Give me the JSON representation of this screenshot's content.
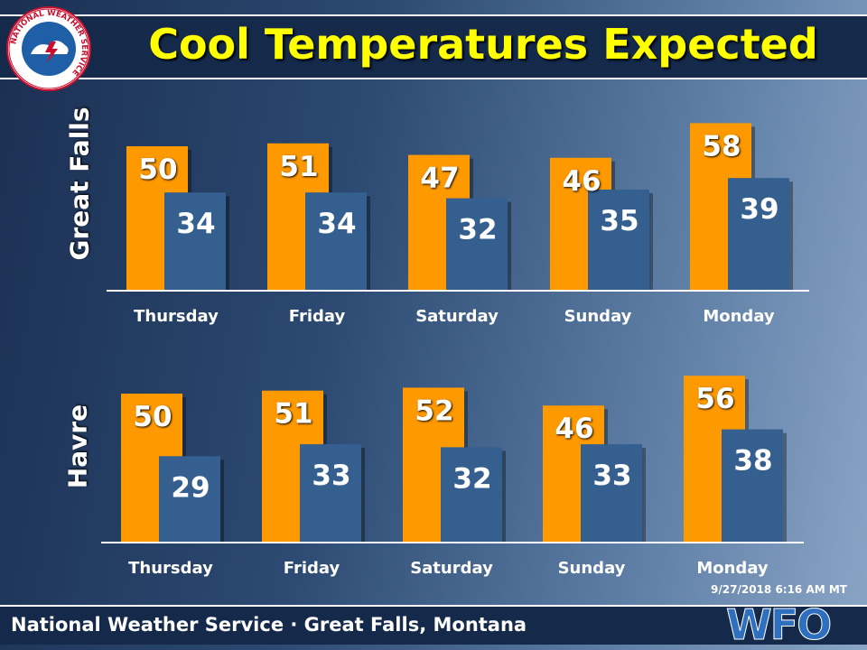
{
  "title": "Cool Temperatures Expected",
  "footer": "National Weather Service · Great Falls, Montana",
  "timestamp": "9/27/2018  6:16 AM MT",
  "logo_text": "NATIONAL WEATHER SERVICE",
  "wfo_logo_text": "WFO",
  "colors": {
    "high": "#ff9900",
    "low": "#345f8f",
    "title": "#ffff00",
    "band": "#15294a"
  },
  "chart_data": [
    {
      "type": "bar",
      "title": "Great Falls",
      "categories": [
        "Thursday",
        "Friday",
        "Saturday",
        "Sunday",
        "Monday"
      ],
      "series": [
        {
          "values": [
            50,
            51,
            47,
            46,
            58
          ]
        },
        {
          "values": [
            34,
            34,
            32,
            35,
            39
          ]
        }
      ]
    },
    {
      "type": "bar",
      "title": "Havre",
      "categories": [
        "Thursday",
        "Friday",
        "Saturday",
        "Sunday",
        "Monday"
      ],
      "series": [
        {
          "values": [
            50,
            51,
            52,
            46,
            56
          ]
        },
        {
          "values": [
            29,
            33,
            32,
            33,
            38
          ]
        }
      ]
    }
  ]
}
